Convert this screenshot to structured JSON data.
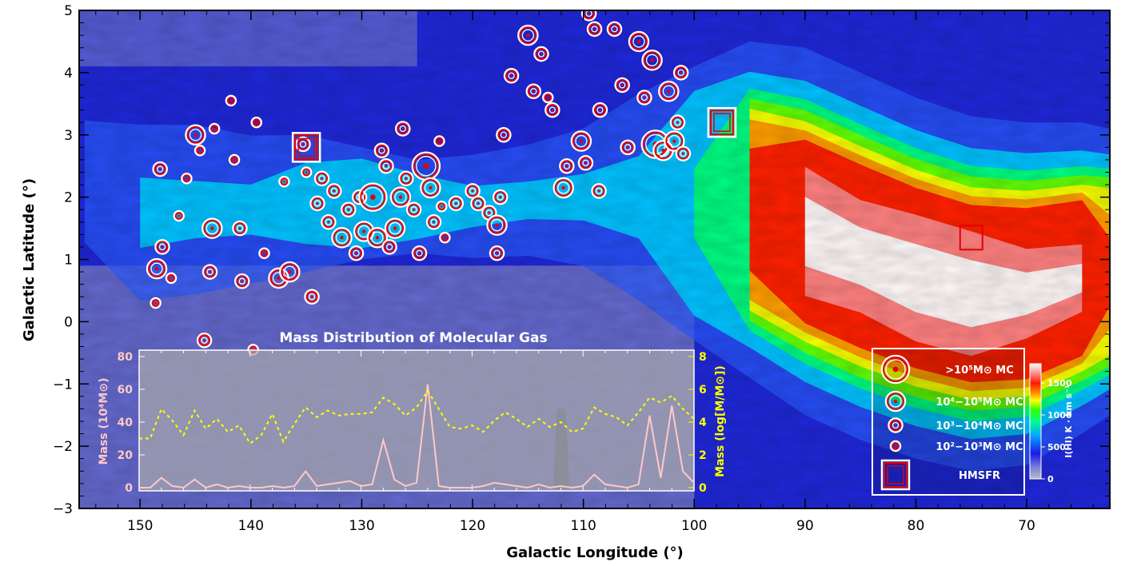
{
  "chart_data": {
    "type": "heatmap",
    "title": "",
    "xlabel": "Galactic Longitude (°)",
    "ylabel": "Galactic Latitude (°)",
    "xlim": [
      155.5,
      62.5
    ],
    "ylim": [
      -3,
      5
    ],
    "x_ticks": [
      150,
      140,
      130,
      120,
      110,
      100,
      90,
      80,
      70
    ],
    "x_tick_labels": [
      "150",
      "140",
      "130",
      "120",
      "110",
      "100",
      "90",
      "80",
      "70"
    ],
    "y_ticks": [
      5,
      4,
      3,
      2,
      1,
      0,
      -1,
      -2,
      -3
    ],
    "y_tick_labels": [
      "5",
      "4",
      "3",
      "2",
      "1",
      "0",
      "−1",
      "−2",
      "−3"
    ],
    "colorbar": {
      "label": "I(HI) K · km s⁻¹",
      "range": [
        0,
        1800
      ],
      "ticks": [
        1500,
        1000,
        500,
        0
      ],
      "tick_labels": [
        "1500",
        "1000",
        "500",
        "0"
      ]
    },
    "hi_intensity_profile": [
      {
        "l": 155,
        "b_lo": 0.9,
        "b_hi": 3.6,
        "i": 450
      },
      {
        "l": 150,
        "b_lo": 0.3,
        "b_hi": 3.2,
        "i": 550
      },
      {
        "l": 145,
        "b_lo": 0.2,
        "b_hi": 3.4,
        "i": 500
      },
      {
        "l": 140,
        "b_lo": 0.4,
        "b_hi": 3.2,
        "i": 500
      },
      {
        "l": 135,
        "b_lo": 0.8,
        "b_hi": 3.0,
        "i": 650
      },
      {
        "l": 130,
        "b_lo": 1.0,
        "b_hi": 2.8,
        "i": 750
      },
      {
        "l": 125,
        "b_lo": 1.1,
        "b_hi": 2.6,
        "i": 700
      },
      {
        "l": 120,
        "b_lo": 1.0,
        "b_hi": 2.7,
        "i": 550
      },
      {
        "l": 115,
        "b_lo": 0.9,
        "b_hi": 3.0,
        "i": 500
      },
      {
        "l": 110,
        "b_lo": 0.7,
        "b_hi": 3.3,
        "i": 500
      },
      {
        "l": 105,
        "b_lo": 0.3,
        "b_hi": 3.7,
        "i": 550
      },
      {
        "l": 100,
        "b_lo": -0.3,
        "b_hi": 4.1,
        "i": 800
      },
      {
        "l": 95,
        "b_lo": -0.9,
        "b_hi": 4.5,
        "i": 1500
      },
      {
        "l": 90,
        "b_lo": -1.5,
        "b_hi": 4.4,
        "i": 1800
      },
      {
        "l": 85,
        "b_lo": -1.9,
        "b_hi": 4.0,
        "i": 1750
      },
      {
        "l": 80,
        "b_lo": -2.2,
        "b_hi": 3.6,
        "i": 1800
      },
      {
        "l": 75,
        "b_lo": -2.4,
        "b_hi": 3.3,
        "i": 1800
      },
      {
        "l": 70,
        "b_lo": -2.3,
        "b_hi": 3.2,
        "i": 1700
      },
      {
        "l": 65,
        "b_lo": -1.8,
        "b_hi": 3.2,
        "i": 1650
      },
      {
        "l": 62.5,
        "b_lo": -1.5,
        "b_hi": 3.1,
        "i": 1400
      }
    ],
    "molecular_clouds": [
      {
        "l": 148.5,
        "b": 0.85,
        "class": "1e4-1e5"
      },
      {
        "l": 148.2,
        "b": 2.45,
        "class": "1e3-1e4"
      },
      {
        "l": 148.0,
        "b": 1.2,
        "class": "1e3-1e4"
      },
      {
        "l": 148.6,
        "b": 0.3,
        "class": "1e2-1e3"
      },
      {
        "l": 147.2,
        "b": 0.7,
        "class": "1e2-1e3"
      },
      {
        "l": 146.5,
        "b": 1.7,
        "class": "1e2-1e3"
      },
      {
        "l": 145.8,
        "b": 2.3,
        "class": "1e2-1e3"
      },
      {
        "l": 145.0,
        "b": 3.0,
        "class": "1e4-1e5"
      },
      {
        "l": 144.6,
        "b": 2.75,
        "class": "1e2-1e3"
      },
      {
        "l": 143.5,
        "b": 1.5,
        "class": "1e4-1e5"
      },
      {
        "l": 143.7,
        "b": 0.8,
        "class": "1e3-1e4"
      },
      {
        "l": 144.2,
        "b": -0.3,
        "class": "1e3-1e4"
      },
      {
        "l": 143.3,
        "b": 3.1,
        "class": "1e2-1e3"
      },
      {
        "l": 141.8,
        "b": 3.55,
        "class": "1e2-1e3"
      },
      {
        "l": 141.0,
        "b": 1.5,
        "class": "1e3-1e4"
      },
      {
        "l": 140.8,
        "b": 0.65,
        "class": "1e3-1e4"
      },
      {
        "l": 139.8,
        "b": -0.45,
        "class": "1e2-1e3"
      },
      {
        "l": 141.5,
        "b": 2.6,
        "class": "1e2-1e3"
      },
      {
        "l": 139.5,
        "b": 3.2,
        "class": "1e2-1e3"
      },
      {
        "l": 138.8,
        "b": 1.1,
        "class": "1e2-1e3"
      },
      {
        "l": 137.5,
        "b": 0.7,
        "class": "1e4-1e5"
      },
      {
        "l": 137.0,
        "b": 2.25,
        "class": "1e2-1e3"
      },
      {
        "l": 136.5,
        "b": 0.8,
        "class": "1e4-1e5"
      },
      {
        "l": 135.3,
        "b": 2.85,
        "class": "1e3-1e4"
      },
      {
        "l": 135.0,
        "b": 2.4,
        "class": "1e2-1e3"
      },
      {
        "l": 134.5,
        "b": 0.4,
        "class": "1e3-1e4"
      },
      {
        "l": 134.0,
        "b": 1.9,
        "class": "1e3-1e4"
      },
      {
        "l": 133.6,
        "b": 2.3,
        "class": "1e3-1e4"
      },
      {
        "l": 133.0,
        "b": 1.6,
        "class": "1e3-1e4"
      },
      {
        "l": 132.5,
        "b": 2.1,
        "class": "1e3-1e4"
      },
      {
        "l": 131.8,
        "b": 1.35,
        "class": "1e4-1e5"
      },
      {
        "l": 131.2,
        "b": 1.8,
        "class": "1e3-1e4"
      },
      {
        "l": 130.5,
        "b": 1.1,
        "class": "1e3-1e4"
      },
      {
        "l": 130.2,
        "b": 2.0,
        "class": "1e3-1e4"
      },
      {
        "l": 129.8,
        "b": 1.45,
        "class": "1e4-1e5"
      },
      {
        "l": 129.0,
        "b": 2.0,
        "class": ">1e5"
      },
      {
        "l": 128.6,
        "b": 1.35,
        "class": "1e4-1e5"
      },
      {
        "l": 128.2,
        "b": 2.75,
        "class": "1e3-1e4"
      },
      {
        "l": 127.8,
        "b": 2.5,
        "class": "1e3-1e4"
      },
      {
        "l": 127.5,
        "b": 1.2,
        "class": "1e3-1e4"
      },
      {
        "l": 127.0,
        "b": 1.5,
        "class": "1e4-1e5"
      },
      {
        "l": 126.5,
        "b": 2.0,
        "class": "1e4-1e5"
      },
      {
        "l": 126.0,
        "b": 2.3,
        "class": "1e3-1e4"
      },
      {
        "l": 126.3,
        "b": 3.1,
        "class": "1e3-1e4"
      },
      {
        "l": 125.3,
        "b": 1.8,
        "class": "1e3-1e4"
      },
      {
        "l": 124.8,
        "b": 1.1,
        "class": "1e3-1e4"
      },
      {
        "l": 124.2,
        "b": 2.5,
        "class": ">1e5"
      },
      {
        "l": 123.8,
        "b": 2.15,
        "class": "1e4-1e5"
      },
      {
        "l": 123.5,
        "b": 1.6,
        "class": "1e3-1e4"
      },
      {
        "l": 123.0,
        "b": 2.9,
        "class": "1e2-1e3"
      },
      {
        "l": 122.8,
        "b": 1.85,
        "class": "1e2-1e3"
      },
      {
        "l": 122.5,
        "b": 1.35,
        "class": "1e2-1e3"
      },
      {
        "l": 121.5,
        "b": 1.9,
        "class": "1e3-1e4"
      },
      {
        "l": 120.0,
        "b": 2.1,
        "class": "1e3-1e4"
      },
      {
        "l": 119.5,
        "b": 1.9,
        "class": "1e3-1e4"
      },
      {
        "l": 118.5,
        "b": 1.75,
        "class": "1e3-1e4"
      },
      {
        "l": 117.8,
        "b": 1.55,
        "class": "1e4-1e5"
      },
      {
        "l": 117.5,
        "b": 2.0,
        "class": "1e3-1e4"
      },
      {
        "l": 117.8,
        "b": 1.1,
        "class": "1e3-1e4"
      },
      {
        "l": 117.2,
        "b": 3.0,
        "class": "1e3-1e4"
      },
      {
        "l": 115.0,
        "b": 4.6,
        "class": "1e4-1e5"
      },
      {
        "l": 116.5,
        "b": 3.95,
        "class": "1e3-1e4"
      },
      {
        "l": 114.5,
        "b": 3.7,
        "class": "1e3-1e4"
      },
      {
        "l": 113.8,
        "b": 4.3,
        "class": "1e3-1e4"
      },
      {
        "l": 113.2,
        "b": 3.6,
        "class": "1e2-1e3"
      },
      {
        "l": 112.8,
        "b": 3.4,
        "class": "1e3-1e4"
      },
      {
        "l": 111.8,
        "b": 2.15,
        "class": "1e4-1e5"
      },
      {
        "l": 111.5,
        "b": 2.5,
        "class": "1e3-1e4"
      },
      {
        "l": 110.2,
        "b": 2.9,
        "class": "1e4-1e5"
      },
      {
        "l": 109.8,
        "b": 2.55,
        "class": "1e3-1e4"
      },
      {
        "l": 109.5,
        "b": 4.95,
        "class": "1e3-1e4"
      },
      {
        "l": 109.0,
        "b": 4.7,
        "class": "1e3-1e4"
      },
      {
        "l": 108.6,
        "b": 2.1,
        "class": "1e3-1e4"
      },
      {
        "l": 108.5,
        "b": 3.4,
        "class": "1e3-1e4"
      },
      {
        "l": 107.2,
        "b": 4.7,
        "class": "1e3-1e4"
      },
      {
        "l": 106.5,
        "b": 3.8,
        "class": "1e3-1e4"
      },
      {
        "l": 106.0,
        "b": 2.8,
        "class": "1e3-1e4"
      },
      {
        "l": 105.0,
        "b": 4.5,
        "class": "1e4-1e5"
      },
      {
        "l": 104.5,
        "b": 3.6,
        "class": "1e3-1e4"
      },
      {
        "l": 103.8,
        "b": 4.2,
        "class": "1e4-1e5"
      },
      {
        "l": 103.5,
        "b": 2.85,
        "class": ">1e5"
      },
      {
        "l": 102.8,
        "b": 2.75,
        "class": "1e4-1e5"
      },
      {
        "l": 102.3,
        "b": 3.7,
        "class": "1e4-1e5"
      },
      {
        "l": 101.8,
        "b": 2.9,
        "class": "1e4-1e5"
      },
      {
        "l": 101.5,
        "b": 3.2,
        "class": "1e3-1e4"
      },
      {
        "l": 101.0,
        "b": 2.7,
        "class": "1e3-1e4"
      },
      {
        "l": 101.2,
        "b": 4.0,
        "class": "1e3-1e4"
      }
    ],
    "hmsfr": [
      {
        "l": 135.0,
        "b": 2.8,
        "highlight": "white"
      },
      {
        "l": 97.5,
        "b": 3.2,
        "highlight": "white"
      },
      {
        "l": 75.0,
        "b": 1.35,
        "highlight": "none"
      }
    ],
    "legend": {
      "entries": [
        {
          "key": ">1e5",
          "label": ">10⁵M⊙ MC"
        },
        {
          "key": "1e4-1e5",
          "label": "10⁴−10⁵M⊙ MC"
        },
        {
          "key": "1e3-1e4",
          "label": "10³−10⁴M⊙ MC"
        },
        {
          "key": "1e2-1e3",
          "label": "10²−10³M⊙ MC"
        },
        {
          "key": "hmsfr",
          "label": "HMSFR"
        }
      ],
      "placement": "bottom-right"
    },
    "inset": {
      "title": "Mass Distribution of Molecular Gas",
      "xlim": [
        150,
        100
      ],
      "left_axis": {
        "label": "Mass (10⁴M⊙)",
        "ylim": [
          0,
          80
        ],
        "ticks": [
          0,
          20,
          40,
          60,
          80
        ],
        "tick_labels": [
          "0",
          "20",
          "40",
          "60",
          "80"
        ],
        "color": "#ffc8c8"
      },
      "right_axis": {
        "label": "Mass (log[M/M⊙])",
        "ylim": [
          0,
          8
        ],
        "ticks": [
          0,
          2,
          4,
          6,
          8
        ],
        "tick_labels": [
          "0",
          "2",
          "4",
          "6",
          "8"
        ],
        "color": "#ffff00"
      },
      "series": [
        {
          "name": "Mass (10^4 Msun)",
          "style": "solid",
          "color": "#ffc8c8",
          "x": [
            150,
            149,
            148,
            147,
            146,
            145,
            144,
            143,
            142,
            141,
            140,
            139,
            138,
            137,
            136,
            135,
            134,
            133,
            132,
            131,
            130,
            129,
            128,
            127,
            126,
            125,
            124,
            123,
            122,
            121,
            120,
            119,
            118,
            117,
            116,
            115,
            114,
            113,
            112,
            111,
            110,
            109,
            108,
            107,
            106,
            105,
            104,
            103,
            102,
            101,
            100
          ],
          "values": [
            0,
            0,
            6,
            1,
            0,
            5,
            0,
            2,
            0,
            1,
            0,
            0,
            1,
            0,
            1,
            10,
            1,
            2,
            3,
            4,
            1,
            2,
            29,
            5,
            1,
            3,
            63,
            1,
            0,
            0,
            0,
            1,
            3,
            2,
            1,
            0,
            2,
            0,
            1,
            0,
            1,
            8,
            2,
            1,
            0,
            2,
            44,
            6,
            50,
            10,
            3
          ]
        },
        {
          "name": "Mass (log[M/Msun])",
          "style": "dashed",
          "color": "#ffff00",
          "x": [
            150,
            149,
            148,
            147,
            146,
            145,
            144,
            143,
            142,
            141,
            140,
            139,
            138,
            137,
            136,
            135,
            134,
            133,
            132,
            131,
            130,
            129,
            128,
            127,
            126,
            125,
            124,
            123,
            122,
            121,
            120,
            119,
            118,
            117,
            116,
            115,
            114,
            113,
            112,
            111,
            110,
            109,
            108,
            107,
            106,
            105,
            104,
            103,
            102,
            101,
            100
          ],
          "values": [
            3.0,
            3.0,
            4.8,
            4.1,
            3.2,
            4.7,
            3.6,
            4.2,
            3.4,
            3.8,
            2.7,
            3.2,
            4.5,
            2.8,
            3.9,
            4.9,
            4.3,
            4.7,
            4.4,
            4.5,
            4.5,
            4.6,
            5.5,
            5.1,
            4.4,
            4.9,
            5.9,
            4.8,
            3.7,
            3.6,
            3.8,
            3.4,
            4.1,
            4.6,
            4.2,
            3.7,
            4.2,
            3.7,
            4.0,
            3.4,
            3.6,
            4.9,
            4.5,
            4.3,
            3.8,
            4.6,
            5.5,
            5.2,
            5.6,
            4.8,
            4.2
          ]
        }
      ]
    }
  }
}
